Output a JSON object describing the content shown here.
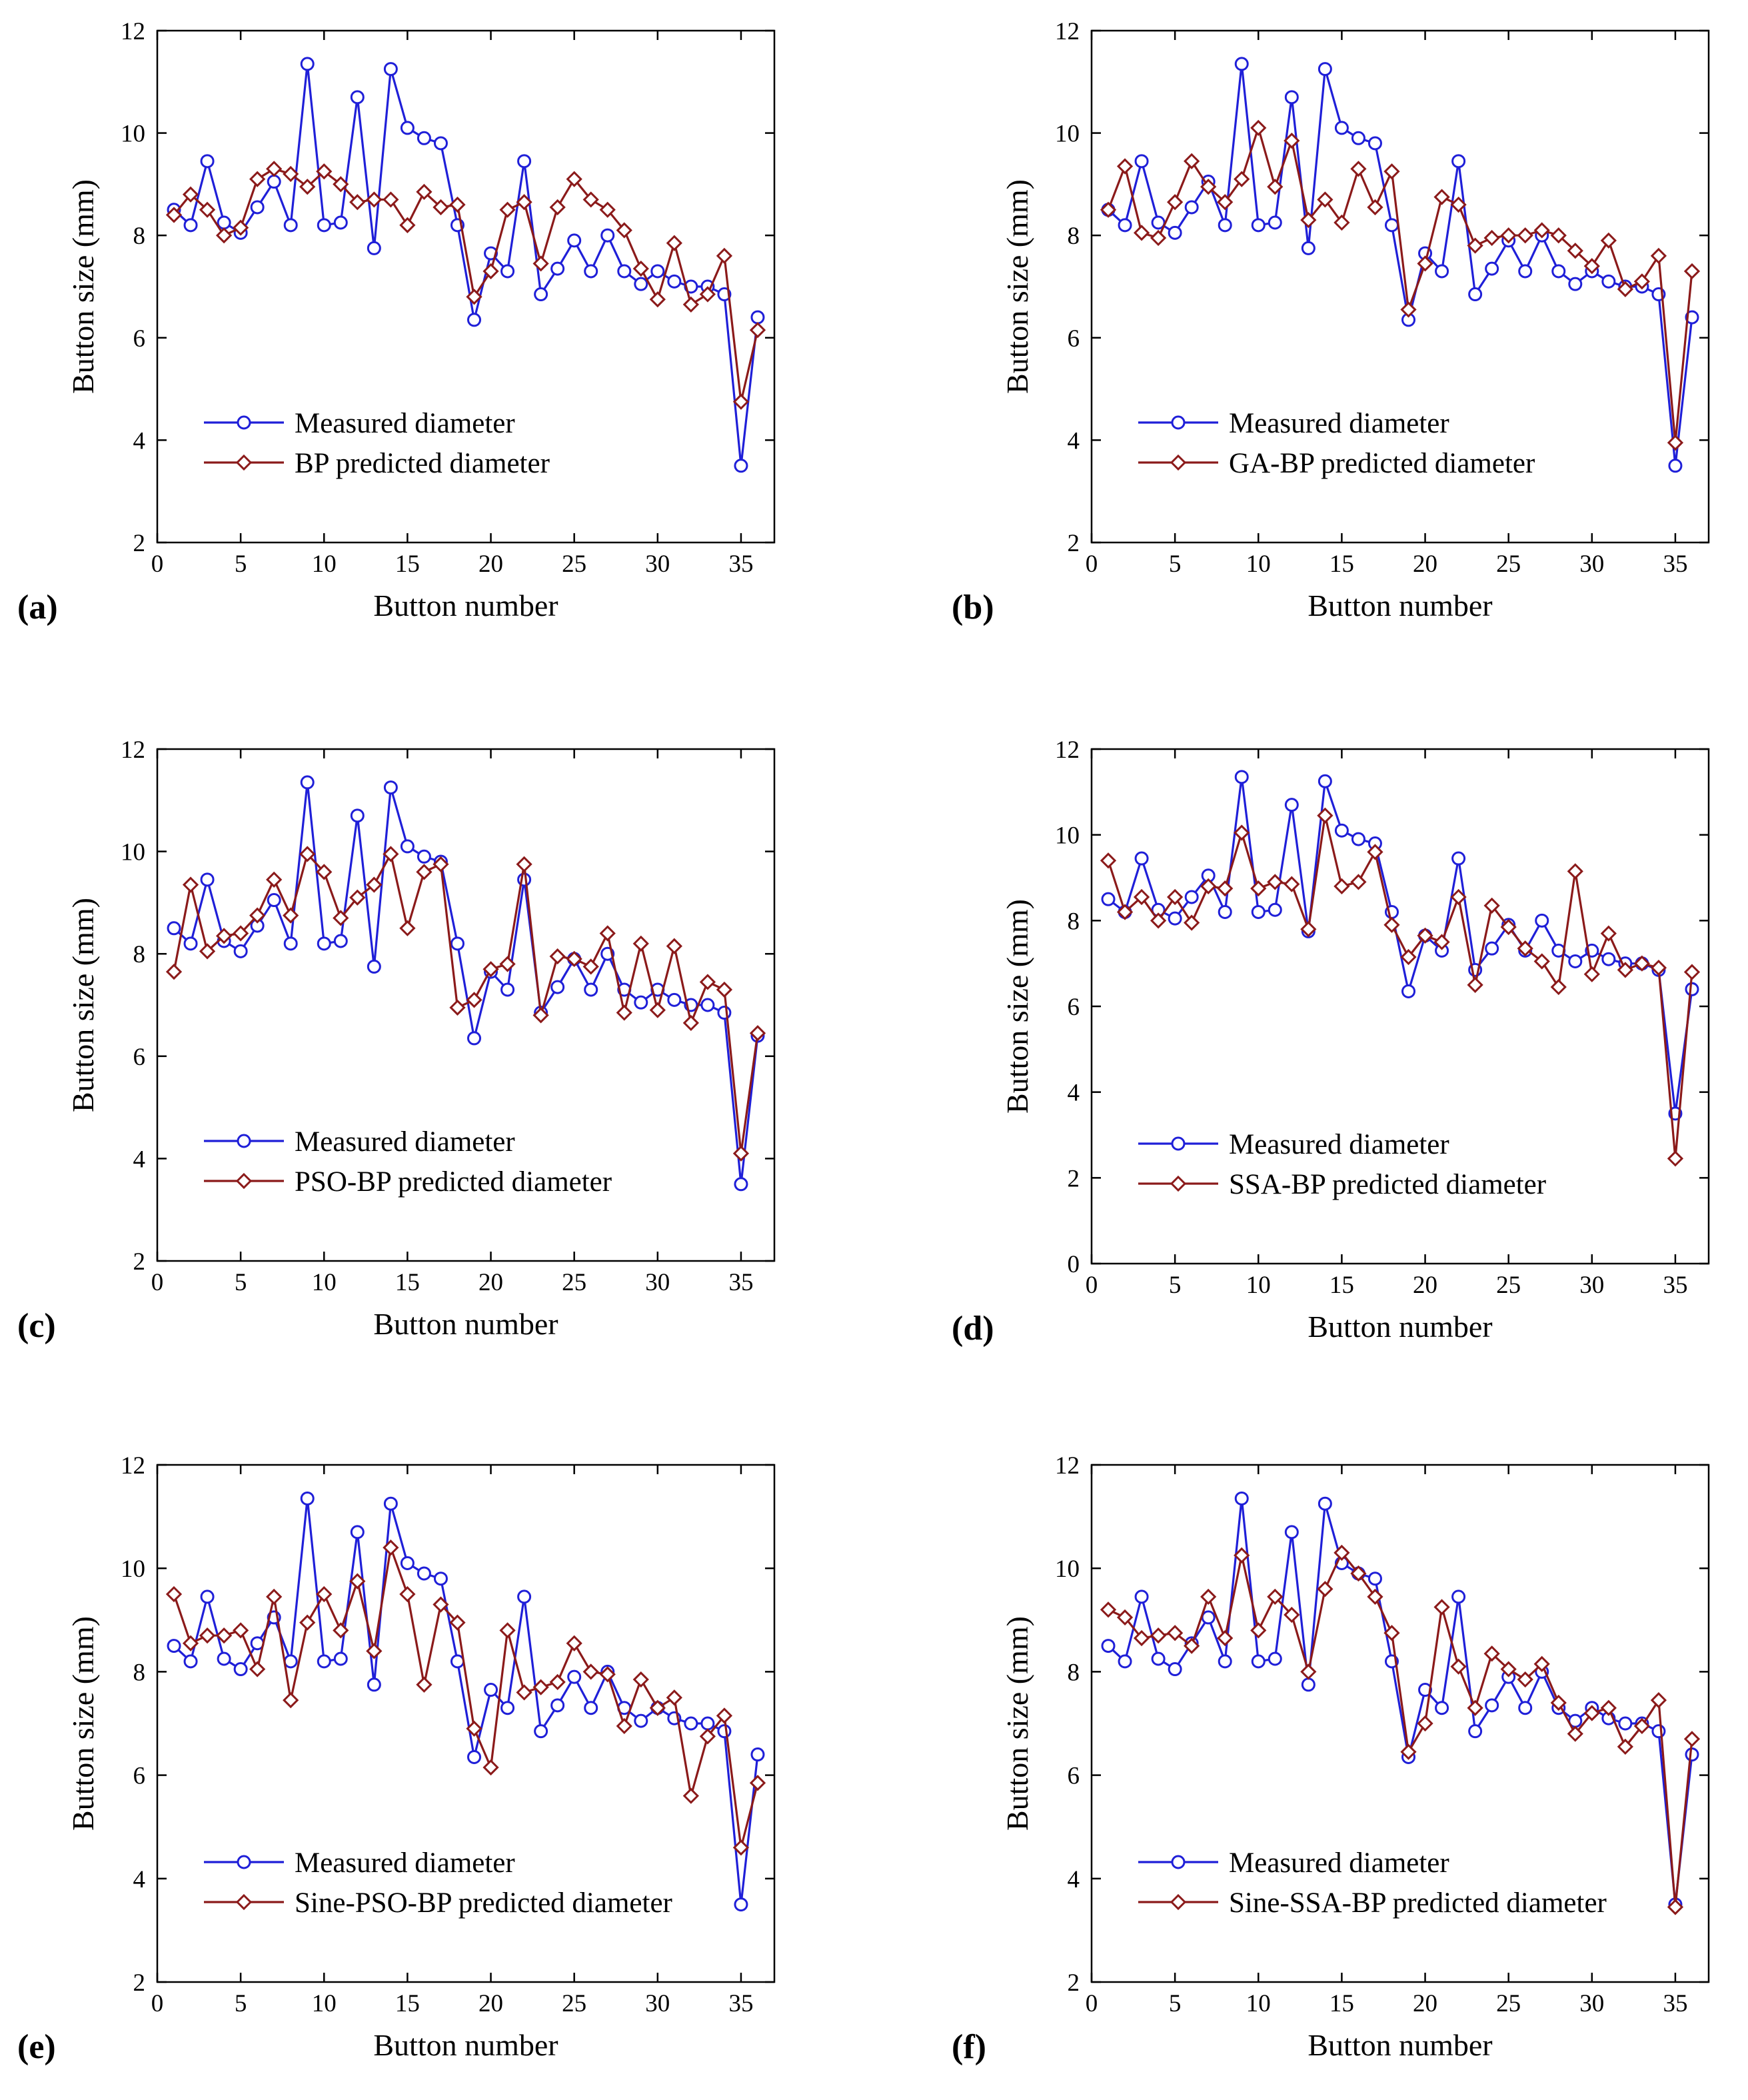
{
  "chart_data": [
    {
      "panel_label": "(a)",
      "type": "line",
      "xlabel": "Button number",
      "ylabel": "Button size (mm)",
      "xlim": [
        0,
        37
      ],
      "ylim": [
        2,
        12
      ],
      "xticks": [
        0,
        5,
        10,
        15,
        20,
        25,
        30,
        35
      ],
      "yticks": [
        2,
        4,
        6,
        8,
        10,
        12
      ],
      "legend_position": "bottom-left",
      "series": [
        {
          "name": "Measured diameter",
          "color": "#1f1fd8",
          "marker": "circle",
          "values": [
            8.5,
            8.2,
            9.45,
            8.25,
            8.05,
            8.55,
            9.05,
            8.2,
            11.35,
            8.2,
            8.25,
            10.7,
            7.75,
            11.25,
            10.1,
            9.9,
            9.8,
            8.2,
            6.35,
            7.65,
            7.3,
            9.45,
            6.85,
            7.35,
            7.9,
            7.3,
            8.0,
            7.3,
            7.05,
            7.3,
            7.1,
            7.0,
            7.0,
            6.85,
            3.5,
            6.4
          ]
        },
        {
          "name": "BP predicted diameter",
          "color": "#8b1a1a",
          "marker": "diamond",
          "values": [
            8.4,
            8.8,
            8.5,
            8.0,
            8.15,
            9.1,
            9.3,
            9.2,
            8.95,
            9.25,
            9.0,
            8.65,
            8.7,
            8.7,
            8.2,
            8.85,
            8.55,
            8.6,
            6.8,
            7.3,
            8.5,
            8.65,
            7.45,
            8.55,
            9.1,
            8.7,
            8.5,
            8.1,
            7.35,
            6.75,
            7.85,
            6.65,
            6.85,
            7.6,
            4.75,
            6.15
          ]
        }
      ]
    },
    {
      "panel_label": "(b)",
      "type": "line",
      "xlabel": "Button number",
      "ylabel": "Button size (mm)",
      "xlim": [
        0,
        37
      ],
      "ylim": [
        2,
        12
      ],
      "xticks": [
        0,
        5,
        10,
        15,
        20,
        25,
        30,
        35
      ],
      "yticks": [
        2,
        4,
        6,
        8,
        10,
        12
      ],
      "legend_position": "bottom-left",
      "series": [
        {
          "name": "Measured diameter",
          "color": "#1f1fd8",
          "marker": "circle",
          "values": [
            8.5,
            8.2,
            9.45,
            8.25,
            8.05,
            8.55,
            9.05,
            8.2,
            11.35,
            8.2,
            8.25,
            10.7,
            7.75,
            11.25,
            10.1,
            9.9,
            9.8,
            8.2,
            6.35,
            7.65,
            7.3,
            9.45,
            6.85,
            7.35,
            7.9,
            7.3,
            8.0,
            7.3,
            7.05,
            7.3,
            7.1,
            7.0,
            7.0,
            6.85,
            3.5,
            6.4
          ]
        },
        {
          "name": "GA-BP predicted diameter",
          "color": "#8b1a1a",
          "marker": "diamond",
          "values": [
            8.5,
            9.35,
            8.05,
            7.95,
            8.65,
            9.45,
            8.95,
            8.65,
            9.1,
            10.1,
            8.95,
            9.85,
            8.3,
            8.7,
            8.25,
            9.3,
            8.55,
            9.25,
            6.55,
            7.45,
            8.75,
            8.6,
            7.8,
            7.95,
            8.0,
            8.0,
            8.1,
            8.0,
            7.7,
            7.4,
            7.9,
            6.95,
            7.1,
            7.6,
            3.95,
            7.3
          ]
        }
      ]
    },
    {
      "panel_label": "(c)",
      "type": "line",
      "xlabel": "Button number",
      "ylabel": "Button size (mm)",
      "xlim": [
        0,
        37
      ],
      "ylim": [
        2,
        12
      ],
      "xticks": [
        0,
        5,
        10,
        15,
        20,
        25,
        30,
        35
      ],
      "yticks": [
        2,
        4,
        6,
        8,
        10,
        12
      ],
      "legend_position": "bottom-left",
      "series": [
        {
          "name": "Measured diameter",
          "color": "#1f1fd8",
          "marker": "circle",
          "values": [
            8.5,
            8.2,
            9.45,
            8.25,
            8.05,
            8.55,
            9.05,
            8.2,
            11.35,
            8.2,
            8.25,
            10.7,
            7.75,
            11.25,
            10.1,
            9.9,
            9.8,
            8.2,
            6.35,
            7.65,
            7.3,
            9.45,
            6.85,
            7.35,
            7.9,
            7.3,
            8.0,
            7.3,
            7.05,
            7.3,
            7.1,
            7.0,
            7.0,
            6.85,
            3.5,
            6.4
          ]
        },
        {
          "name": "PSO-BP predicted diameter",
          "color": "#8b1a1a",
          "marker": "diamond",
          "values": [
            7.65,
            9.35,
            8.05,
            8.35,
            8.4,
            8.75,
            9.45,
            8.75,
            9.95,
            9.6,
            8.7,
            9.1,
            9.35,
            9.95,
            8.5,
            9.6,
            9.75,
            6.95,
            7.1,
            7.7,
            7.8,
            9.75,
            6.8,
            7.95,
            7.9,
            7.75,
            8.4,
            6.85,
            8.2,
            6.9,
            8.15,
            6.65,
            7.45,
            7.3,
            4.1,
            6.45
          ]
        }
      ]
    },
    {
      "panel_label": "(d)",
      "type": "line",
      "xlabel": "Button number",
      "ylabel": "Button size (mm)",
      "xlim": [
        0,
        37
      ],
      "ylim": [
        0,
        12
      ],
      "xticks": [
        0,
        5,
        10,
        15,
        20,
        25,
        30,
        35
      ],
      "yticks": [
        0,
        2,
        4,
        6,
        8,
        10,
        12
      ],
      "legend_position": "bottom-left",
      "series": [
        {
          "name": "Measured diameter",
          "color": "#1f1fd8",
          "marker": "circle",
          "values": [
            8.5,
            8.2,
            9.45,
            8.25,
            8.05,
            8.55,
            9.05,
            8.2,
            11.35,
            8.2,
            8.25,
            10.7,
            7.75,
            11.25,
            10.1,
            9.9,
            9.8,
            8.2,
            6.35,
            7.65,
            7.3,
            9.45,
            6.85,
            7.35,
            7.9,
            7.3,
            8.0,
            7.3,
            7.05,
            7.3,
            7.1,
            7.0,
            7.0,
            6.85,
            3.5,
            6.4
          ]
        },
        {
          "name": "SSA-BP predicted diameter",
          "color": "#8b1a1a",
          "marker": "diamond",
          "values": [
            9.4,
            8.2,
            8.55,
            8.0,
            8.55,
            7.95,
            8.8,
            8.75,
            10.05,
            8.75,
            8.9,
            8.85,
            7.8,
            10.45,
            8.8,
            8.9,
            9.6,
            7.9,
            7.15,
            7.65,
            7.5,
            8.55,
            6.5,
            8.35,
            7.85,
            7.35,
            7.05,
            6.45,
            9.15,
            6.75,
            7.7,
            6.85,
            7.0,
            6.9,
            2.45,
            6.8
          ]
        }
      ]
    },
    {
      "panel_label": "(e)",
      "type": "line",
      "xlabel": "Button number",
      "ylabel": "Button size (mm)",
      "xlim": [
        0,
        37
      ],
      "ylim": [
        2,
        12
      ],
      "xticks": [
        0,
        5,
        10,
        15,
        20,
        25,
        30,
        35
      ],
      "yticks": [
        2,
        4,
        6,
        8,
        10,
        12
      ],
      "legend_position": "bottom-left",
      "series": [
        {
          "name": "Measured diameter",
          "color": "#1f1fd8",
          "marker": "circle",
          "values": [
            8.5,
            8.2,
            9.45,
            8.25,
            8.05,
            8.55,
            9.05,
            8.2,
            11.35,
            8.2,
            8.25,
            10.7,
            7.75,
            11.25,
            10.1,
            9.9,
            9.8,
            8.2,
            6.35,
            7.65,
            7.3,
            9.45,
            6.85,
            7.35,
            7.9,
            7.3,
            8.0,
            7.3,
            7.05,
            7.3,
            7.1,
            7.0,
            7.0,
            6.85,
            3.5,
            6.4
          ]
        },
        {
          "name": "Sine-PSO-BP predicted diameter",
          "color": "#8b1a1a",
          "marker": "diamond",
          "values": [
            9.5,
            8.55,
            8.7,
            8.7,
            8.8,
            8.05,
            9.45,
            7.45,
            8.95,
            9.5,
            8.8,
            9.75,
            8.4,
            10.4,
            9.5,
            7.75,
            9.3,
            8.95,
            6.9,
            6.15,
            8.8,
            7.6,
            7.7,
            7.8,
            8.55,
            8.0,
            7.95,
            6.95,
            7.85,
            7.3,
            7.5,
            5.6,
            6.75,
            7.15,
            4.6,
            5.85
          ]
        }
      ]
    },
    {
      "panel_label": "(f)",
      "type": "line",
      "xlabel": "Button number",
      "ylabel": "Button size (mm)",
      "xlim": [
        0,
        37
      ],
      "ylim": [
        2,
        12
      ],
      "xticks": [
        0,
        5,
        10,
        15,
        20,
        25,
        30,
        35
      ],
      "yticks": [
        2,
        4,
        6,
        8,
        10,
        12
      ],
      "legend_position": "bottom-left",
      "series": [
        {
          "name": "Measured diameter",
          "color": "#1f1fd8",
          "marker": "circle",
          "values": [
            8.5,
            8.2,
            9.45,
            8.25,
            8.05,
            8.55,
            9.05,
            8.2,
            11.35,
            8.2,
            8.25,
            10.7,
            7.75,
            11.25,
            10.1,
            9.9,
            9.8,
            8.2,
            6.35,
            7.65,
            7.3,
            9.45,
            6.85,
            7.35,
            7.9,
            7.3,
            8.0,
            7.3,
            7.05,
            7.3,
            7.1,
            7.0,
            7.0,
            6.85,
            3.5,
            6.4
          ]
        },
        {
          "name": "Sine-SSA-BP predicted diameter",
          "color": "#8b1a1a",
          "marker": "diamond",
          "values": [
            9.2,
            9.05,
            8.65,
            8.7,
            8.75,
            8.5,
            9.45,
            8.65,
            10.25,
            8.8,
            9.45,
            9.1,
            8.0,
            9.6,
            10.3,
            9.9,
            9.45,
            8.75,
            6.45,
            7.0,
            9.25,
            8.1,
            7.3,
            8.35,
            8.05,
            7.85,
            8.15,
            7.4,
            6.8,
            7.2,
            7.3,
            6.55,
            6.95,
            7.45,
            3.45,
            6.7
          ]
        }
      ]
    }
  ]
}
